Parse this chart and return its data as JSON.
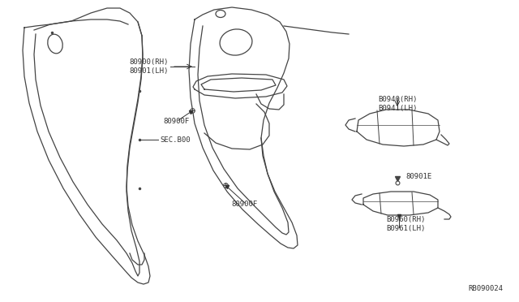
{
  "bg_color": "#ffffff",
  "line_color": "#444444",
  "text_color": "#333333",
  "diagram_code": "RB090024",
  "label_sec800": "SEC.B00",
  "label_80900F_top": "80900F",
  "label_80900F_mid": "80900F",
  "label_80900": "80900(RH)\n80901(LH)",
  "label_80960": "B0960(RH)\nB0961(LH)",
  "label_80901E": "80901E",
  "label_80940": "B0940(RH)\nB0941(LH)"
}
